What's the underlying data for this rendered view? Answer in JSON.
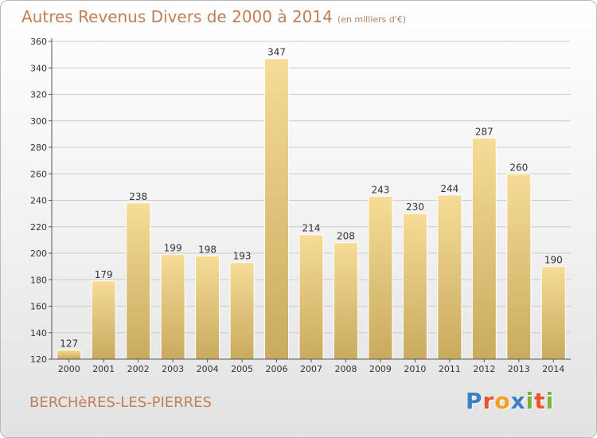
{
  "title": "Autres Revenus Divers de 2000 à 2014",
  "subtitle": "(en milliers d'€)",
  "city": "BERCHèRES-LES-PIERRES",
  "logo": {
    "letters": [
      "P",
      "r",
      "o",
      "x",
      "i",
      "t",
      "i"
    ],
    "colors": [
      "#3a82c4",
      "#e8552a",
      "#f2a01f",
      "#3a82c4",
      "#7ab33b",
      "#e8552a",
      "#7ab33b"
    ]
  },
  "colors": {
    "bar_top": "#f6dc96",
    "bar_bottom": "#c9aa5f",
    "bar_edge": "#ffffff",
    "axis": "#555555",
    "grid": "#cccccc",
    "text": "#333333"
  },
  "chart_data": {
    "type": "bar",
    "categories": [
      "2000",
      "2001",
      "2002",
      "2003",
      "2004",
      "2005",
      "2006",
      "2007",
      "2008",
      "2009",
      "2010",
      "2011",
      "2012",
      "2013",
      "2014"
    ],
    "values": [
      127,
      179,
      238,
      199,
      198,
      193,
      347,
      214,
      208,
      243,
      230,
      244,
      287,
      260,
      190
    ],
    "ylim": [
      120,
      360
    ],
    "yticks": [
      120,
      140,
      160,
      180,
      200,
      220,
      240,
      260,
      280,
      300,
      320,
      340,
      360
    ],
    "grid": "horizontal",
    "legend": "none"
  }
}
